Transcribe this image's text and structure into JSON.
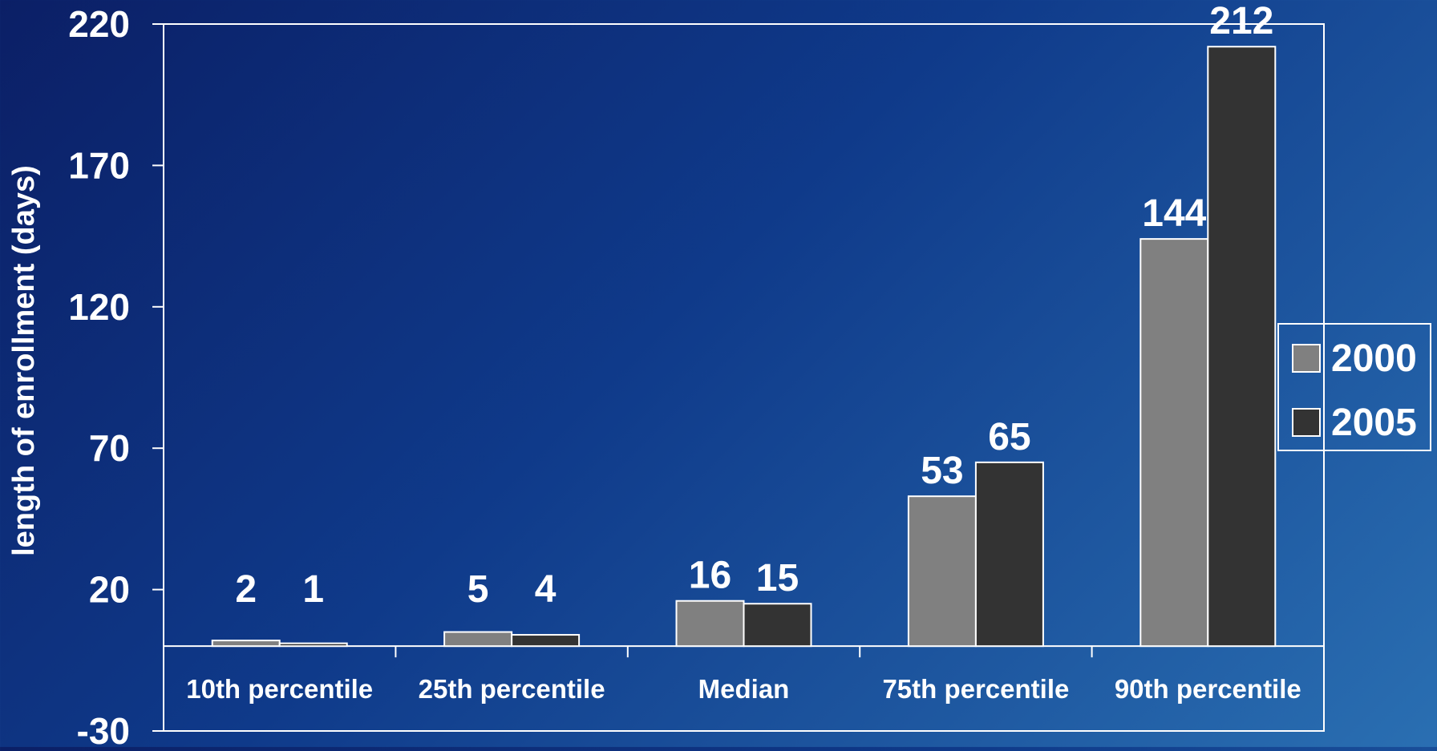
{
  "chart_data": {
    "type": "bar",
    "title": "",
    "xlabel": "",
    "ylabel": "length of enrollment (days)",
    "categories": [
      "10th percentile",
      "25th percentile",
      "Median",
      "75th percentile",
      "90th percentile"
    ],
    "series": [
      {
        "name": "2000",
        "values": [
          2,
          5,
          16,
          53,
          144
        ],
        "color": "#808080"
      },
      {
        "name": "2005",
        "values": [
          1,
          4,
          15,
          65,
          212
        ],
        "color": "#333333"
      }
    ],
    "data_labels": [
      [
        "2",
        "5",
        "16",
        "53",
        "144"
      ],
      [
        "1",
        "4",
        "15",
        "65",
        "212"
      ]
    ],
    "yticks": [
      -30,
      20,
      70,
      120,
      170,
      220
    ],
    "ytick_labels": [
      "-30",
      "20",
      "70",
      "120",
      "170",
      "220"
    ],
    "ylim": [
      -30,
      220
    ],
    "baseline": 0,
    "grid": false,
    "legend_position": "right",
    "colors": {
      "axis": "#ffffff",
      "text": "#ffffff"
    }
  }
}
